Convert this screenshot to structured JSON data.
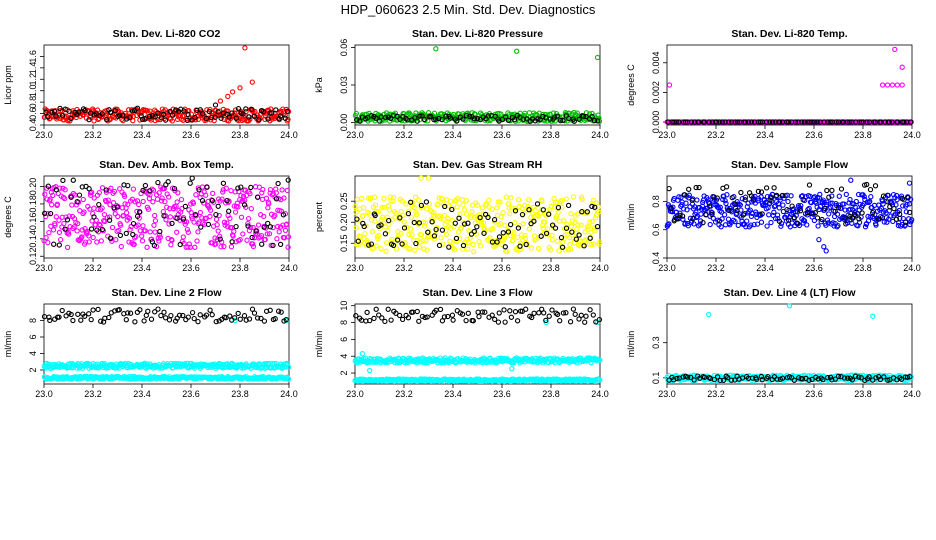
{
  "figure": {
    "title": "HDP_060623  2.5 Min. Std. Dev. Diagnostics"
  },
  "chart_data": [
    {
      "type": "scatter",
      "title": "Stan. Dev. Li-820 CO2",
      "xlabel": "",
      "ylabel": "Licor ppm",
      "xlim": [
        23.0,
        24.0
      ],
      "ylim": [
        0.4,
        1.8
      ],
      "xticks": [
        "23.0",
        "23.2",
        "23.4",
        "23.6",
        "23.8",
        "24.0"
      ],
      "yticks": [
        "0.4",
        "0.6",
        "0.8",
        "1.0",
        "1.2",
        "1.4",
        "1.6"
      ],
      "series": [
        {
          "color": "#ff0000",
          "n": 300,
          "base": [
            0.47,
            0.68
          ],
          "outliers": [
            [
              23.72,
              0.82
            ],
            [
              23.75,
              0.9
            ],
            [
              23.77,
              0.98
            ],
            [
              23.8,
              1.05
            ],
            [
              23.85,
              1.15
            ],
            [
              23.82,
              1.75
            ]
          ]
        },
        {
          "color": "#000000",
          "n": 85,
          "base": [
            0.48,
            0.7
          ],
          "outliers": [
            [
              23.7,
              0.75
            ]
          ]
        }
      ]
    },
    {
      "type": "scatter",
      "title": "Stan. Dev. Li-820 Pressure",
      "xlabel": "",
      "ylabel": "kPa",
      "xlim": [
        23.0,
        24.0
      ],
      "ylim": [
        -0.002,
        0.062
      ],
      "xticks": [
        "23.0",
        "23.2",
        "23.4",
        "23.6",
        "23.8",
        "24.0"
      ],
      "yticks": [
        "0.00",
        "0.03",
        "0.06"
      ],
      "series": [
        {
          "color": "#00c000",
          "n": 300,
          "base": [
            0.001,
            0.008
          ],
          "outliers": [
            [
              23.33,
              0.059
            ],
            [
              23.66,
              0.057
            ],
            [
              23.99,
              0.052
            ]
          ]
        },
        {
          "color": "#000000",
          "n": 85,
          "base": [
            0.001,
            0.006
          ],
          "outliers": []
        }
      ]
    },
    {
      "type": "scatter",
      "title": "Stan. Dev. Li-820 Temp.",
      "xlabel": "",
      "ylabel": "degrees C",
      "xlim": [
        23.0,
        24.0
      ],
      "ylim": [
        -0.0002,
        0.0052
      ],
      "xticks": [
        "23.0",
        "23.2",
        "23.4",
        "23.6",
        "23.8",
        "24.0"
      ],
      "yticks": [
        "0.000",
        "0.002",
        "0.004"
      ],
      "series": [
        {
          "color": "#ff00ff",
          "n": 320,
          "base": [
            0.0,
            0.0
          ],
          "outliers": [
            [
              23.01,
              0.0025
            ],
            [
              23.88,
              0.0025
            ],
            [
              23.9,
              0.0025
            ],
            [
              23.92,
              0.0025
            ],
            [
              23.94,
              0.0025
            ],
            [
              23.96,
              0.0025
            ],
            [
              23.93,
              0.0049
            ],
            [
              23.96,
              0.0037
            ]
          ]
        },
        {
          "color": "#000000",
          "n": 85,
          "base": [
            0.0,
            0.0
          ],
          "outliers": []
        }
      ]
    },
    {
      "type": "scatter",
      "title": "Stan. Dev. Amb. Box Temp.",
      "xlabel": "",
      "ylabel": "degrees C",
      "xlim": [
        23.0,
        24.0
      ],
      "ylim": [
        0.118,
        0.212
      ],
      "xticks": [
        "23.0",
        "23.2",
        "23.4",
        "23.6",
        "23.8",
        "24.0"
      ],
      "yticks": [
        "0.12",
        "0.14",
        "0.16",
        "0.18",
        "0.20"
      ],
      "series": [
        {
          "color": "#ff00ff",
          "n": 420,
          "base": [
            0.13,
            0.2
          ],
          "outliers": []
        },
        {
          "color": "#000000",
          "n": 85,
          "base": [
            0.13,
            0.21
          ],
          "outliers": []
        }
      ]
    },
    {
      "type": "scatter",
      "title": "Stan. Dev. Gas Stream RH",
      "xlabel": "",
      "ylabel": "percent",
      "xlim": [
        23.0,
        24.0
      ],
      "ylim": [
        0.115,
        0.31
      ],
      "xticks": [
        "23.0",
        "23.2",
        "23.4",
        "23.6",
        "23.8",
        "24.0"
      ],
      "yticks": [
        "0.15",
        "0.20",
        "0.25"
      ],
      "series": [
        {
          "color": "#ffff00",
          "n": 420,
          "base": [
            0.13,
            0.26
          ],
          "outliers": [
            [
              23.27,
              0.305
            ],
            [
              23.3,
              0.305
            ]
          ]
        },
        {
          "color": "#000000",
          "n": 85,
          "base": [
            0.14,
            0.25
          ],
          "outliers": []
        }
      ]
    },
    {
      "type": "scatter",
      "title": "Stan. Dev. Sample Flow",
      "xlabel": "",
      "ylabel": "ml/min",
      "xlim": [
        23.0,
        24.0
      ],
      "ylim": [
        0.4,
        0.98
      ],
      "xticks": [
        "23.0",
        "23.2",
        "23.4",
        "23.6",
        "23.8",
        "24.0"
      ],
      "yticks": [
        "0.4",
        "0.6",
        "0.8"
      ],
      "series": [
        {
          "color": "#0000ff",
          "n": 420,
          "base": [
            0.62,
            0.85
          ],
          "outliers": [
            [
              23.62,
              0.53
            ],
            [
              23.64,
              0.48
            ],
            [
              23.65,
              0.45
            ],
            [
              23.75,
              0.95
            ],
            [
              23.99,
              0.93
            ]
          ]
        },
        {
          "color": "#000000",
          "n": 85,
          "base": [
            0.64,
            0.92
          ],
          "outliers": []
        }
      ]
    },
    {
      "type": "scatter",
      "title": "Stan. Dev. Line 2 Flow",
      "xlabel": "",
      "ylabel": "ml/min",
      "xlim": [
        23.0,
        24.0
      ],
      "ylim": [
        0.3,
        10.0
      ],
      "xticks": [
        "23.0",
        "23.2",
        "23.4",
        "23.6",
        "23.8",
        "24.0"
      ],
      "yticks": [
        "2",
        "4",
        "6",
        "8"
      ],
      "series": [
        {
          "color": "#00ffff",
          "n": 320,
          "base": [
            2.2,
            2.8
          ],
          "outliers": [
            [
              23.78,
              8.0
            ],
            [
              23.99,
              8.0
            ]
          ]
        },
        {
          "color": "#00ffff",
          "n": 320,
          "base": [
            0.9,
            1.2
          ],
          "outliers": []
        },
        {
          "color": "#000000",
          "n": 85,
          "base": [
            7.8,
            9.4
          ],
          "outliers": []
        }
      ]
    },
    {
      "type": "scatter",
      "title": "Stan. Dev. Line 3 Flow",
      "xlabel": "",
      "ylabel": "ml/min",
      "xlim": [
        23.0,
        24.0
      ],
      "ylim": [
        0.7,
        10.2
      ],
      "xticks": [
        "23.0",
        "23.2",
        "23.4",
        "23.6",
        "23.8",
        "24.0"
      ],
      "yticks": [
        "2",
        "4",
        "6",
        "8",
        "10"
      ],
      "series": [
        {
          "color": "#00ffff",
          "n": 320,
          "base": [
            3.2,
            3.8
          ],
          "outliers": [
            [
              23.03,
              4.3
            ],
            [
              23.06,
              2.3
            ],
            [
              23.64,
              2.5
            ],
            [
              23.78,
              8.0
            ],
            [
              23.99,
              8.0
            ]
          ]
        },
        {
          "color": "#00ffff",
          "n": 320,
          "base": [
            1.0,
            1.3
          ],
          "outliers": []
        },
        {
          "color": "#000000",
          "n": 85,
          "base": [
            8.0,
            9.6
          ],
          "outliers": []
        }
      ]
    },
    {
      "type": "scatter",
      "title": "Stan. Dev. Line 4 (LT) Flow",
      "xlabel": "",
      "ylabel": "ml/min",
      "xlim": [
        23.0,
        24.0
      ],
      "ylim": [
        0.065,
        0.52
      ],
      "xticks": [
        "23.0",
        "23.2",
        "23.4",
        "23.6",
        "23.8",
        "24.0"
      ],
      "yticks": [
        "0.1",
        "0.3"
      ],
      "series": [
        {
          "color": "#00ffff",
          "n": 320,
          "base": [
            0.085,
            0.115
          ],
          "outliers": [
            [
              23.17,
              0.46
            ],
            [
              23.5,
              0.51
            ],
            [
              23.84,
              0.45
            ]
          ]
        },
        {
          "color": "#000000",
          "n": 85,
          "base": [
            0.085,
            0.11
          ],
          "outliers": []
        }
      ]
    }
  ]
}
